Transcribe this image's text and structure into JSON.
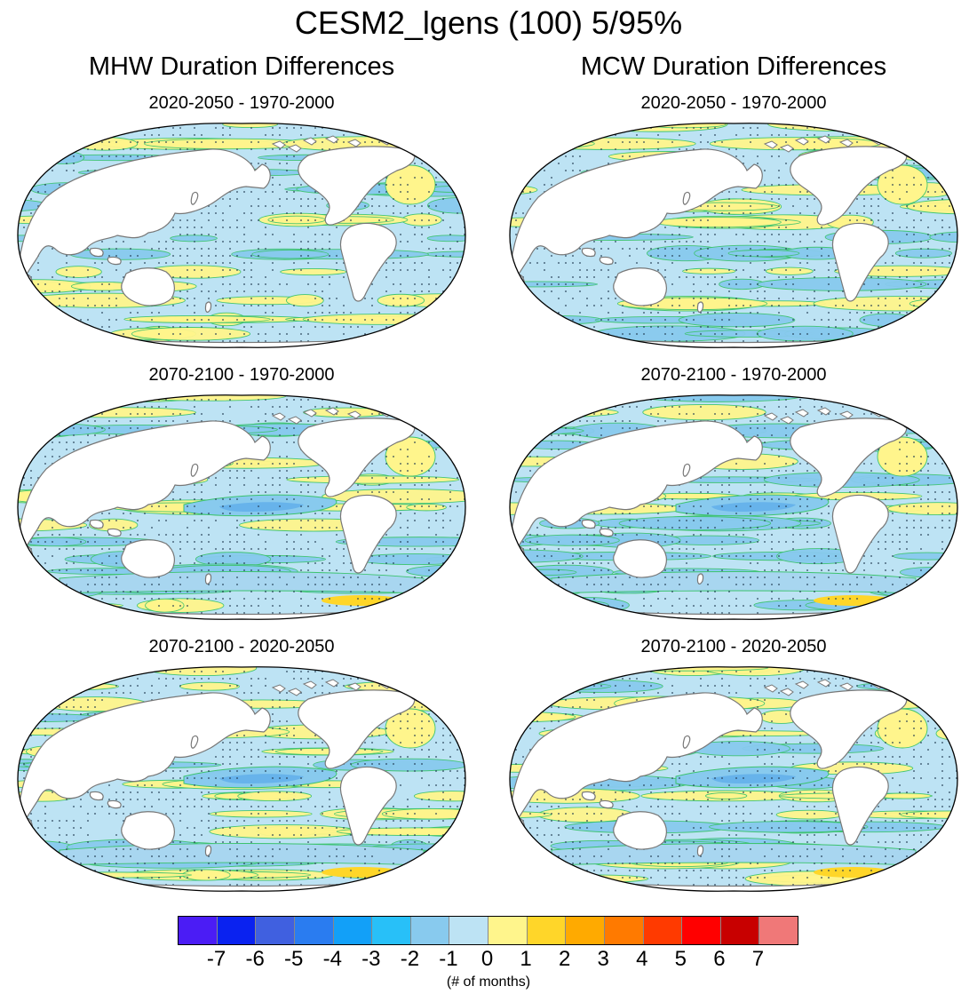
{
  "figure": {
    "title": "CESM2_lgens (100) 5/95%",
    "columns": [
      {
        "title": "MHW Duration Differences",
        "panels": [
          {
            "subtitle": "2020-2050 - 1970-2000",
            "pattern": "mixed"
          },
          {
            "subtitle": "2070-2100 - 1970-2000",
            "pattern": "negative-pacific"
          },
          {
            "subtitle": "2070-2100 - 2020-2050",
            "pattern": "mixed-negative"
          }
        ]
      },
      {
        "title": "MCW Duration Differences",
        "panels": [
          {
            "subtitle": "2020-2050 - 1970-2000",
            "pattern": "mixed-positive"
          },
          {
            "subtitle": "2070-2100 - 1970-2000",
            "pattern": "negative-pacific"
          },
          {
            "subtitle": "2070-2100 - 2020-2050",
            "pattern": "mixed-negative"
          }
        ]
      }
    ],
    "colorbar": {
      "colors": [
        "#4b1cf5",
        "#0a22f0",
        "#4060e0",
        "#2a7cf0",
        "#12a0f8",
        "#28c0f8",
        "#88caee",
        "#bde3f4",
        "#fff58c",
        "#ffd629",
        "#ffaa00",
        "#ff7a00",
        "#ff3a00",
        "#ff0000",
        "#c80000",
        "#f07878"
      ],
      "tick_labels": [
        "-7",
        "-6",
        "-5",
        "-4",
        "-3",
        "-2",
        "-1",
        "0",
        "1",
        "2",
        "3",
        "4",
        "5",
        "6",
        "7"
      ],
      "units": "(# of months)"
    },
    "map_colors": {
      "ocean_neutral": "#bde3f4",
      "ocean_positive": "#fff58c",
      "ocean_strong_positive": "#ffd629",
      "ocean_negative": "#88caee",
      "land": "#ffffff",
      "contour": "#3cc36e",
      "coast": "#777777",
      "stipple": "#203a50"
    }
  }
}
